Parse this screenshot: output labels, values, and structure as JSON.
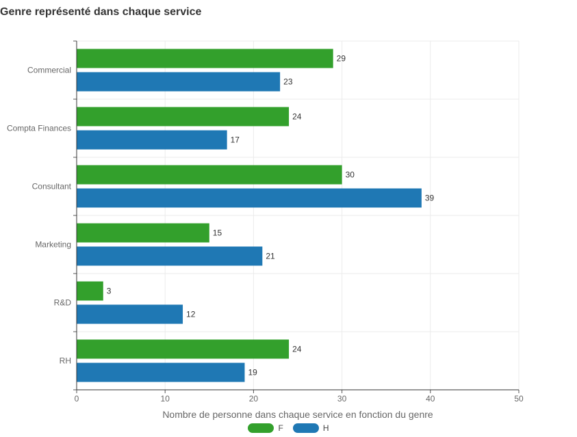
{
  "chart_data": {
    "type": "bar",
    "orientation": "horizontal",
    "title": "Genre représenté dans chaque service",
    "xlabel": "Nombre de personne dans chaque service en fonction du genre",
    "ylabel": "",
    "categories": [
      "Commercial",
      "Compta Finances",
      "Consultant",
      "Marketing",
      "R&D",
      "RH"
    ],
    "series": [
      {
        "name": "F",
        "color": "#33a02c",
        "values": [
          29,
          24,
          30,
          15,
          3,
          24
        ]
      },
      {
        "name": "H",
        "color": "#1f78b4",
        "values": [
          23,
          17,
          39,
          21,
          12,
          19
        ]
      }
    ],
    "xlim": [
      0,
      50
    ],
    "xticks": [
      0,
      10,
      20,
      30,
      40,
      50
    ],
    "grid": true,
    "data_labels": true,
    "legend_position": "bottom"
  }
}
